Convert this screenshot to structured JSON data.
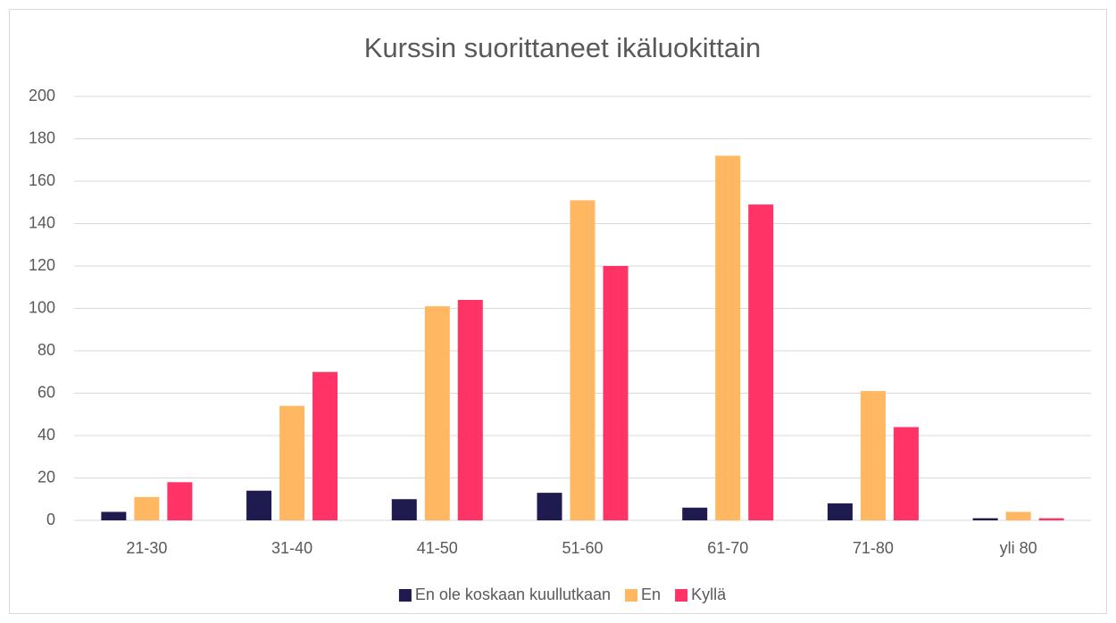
{
  "chart_data": {
    "type": "bar",
    "title": "Kurssin suorittaneet ikäluokittain",
    "categories": [
      "21-30",
      "31-40",
      "41-50",
      "51-60",
      "61-70",
      "71-80",
      "yli 80"
    ],
    "series": [
      {
        "name": "En ole koskaan kuullutkaan",
        "color": "#1f1a4f",
        "values": [
          4,
          14,
          10,
          13,
          6,
          8,
          1
        ]
      },
      {
        "name": "En",
        "color": "#ffb761",
        "values": [
          11,
          54,
          101,
          151,
          172,
          61,
          4
        ]
      },
      {
        "name": "Kyllä",
        "color": "#ff3366",
        "values": [
          18,
          70,
          104,
          120,
          149,
          44,
          1
        ]
      }
    ],
    "ylim": [
      0,
      200
    ],
    "yticks": [
      0,
      20,
      40,
      60,
      80,
      100,
      120,
      140,
      160,
      180,
      200
    ],
    "grid": true,
    "legend": "bottom"
  }
}
